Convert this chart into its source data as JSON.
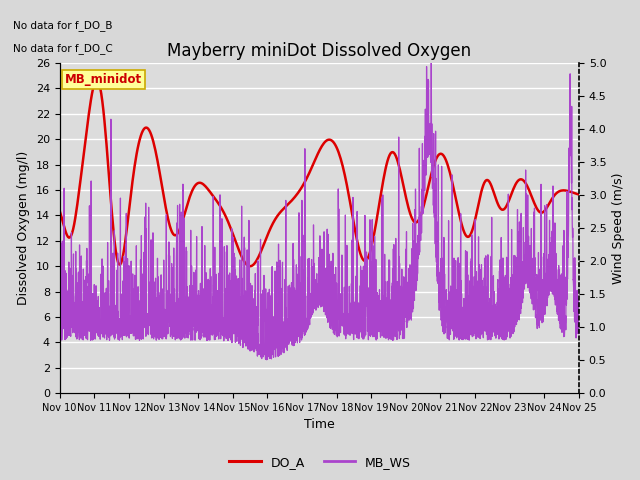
{
  "title": "Mayberry miniDot Dissolved Oxygen",
  "xlabel": "Time",
  "ylabel_left": "Dissolved Oxygen (mg/l)",
  "ylabel_right": "Wind Speed (m/s)",
  "text_no_data": [
    "No data for f_DO_B",
    "No data for f_DO_C"
  ],
  "legend_box_label": "MB_minidot",
  "ylim_left": [
    0,
    26
  ],
  "ylim_right": [
    0.0,
    5.0
  ],
  "yticks_left": [
    0,
    2,
    4,
    6,
    8,
    10,
    12,
    14,
    16,
    18,
    20,
    22,
    24,
    26
  ],
  "yticks_right": [
    0.0,
    0.5,
    1.0,
    1.5,
    2.0,
    2.5,
    3.0,
    3.5,
    4.0,
    4.5,
    5.0
  ],
  "do_color": "#dd0000",
  "ws_color": "#aa44cc",
  "background_color": "#d8d8d8",
  "plot_bg_color": "#dcdcdc",
  "legend_box_color": "#ffff99",
  "legend_box_edge": "#ccaa00",
  "grid_color": "#ffffff",
  "do_linewidth": 1.8,
  "ws_linewidth": 0.9,
  "fig_facecolor": "#d8d8d8"
}
